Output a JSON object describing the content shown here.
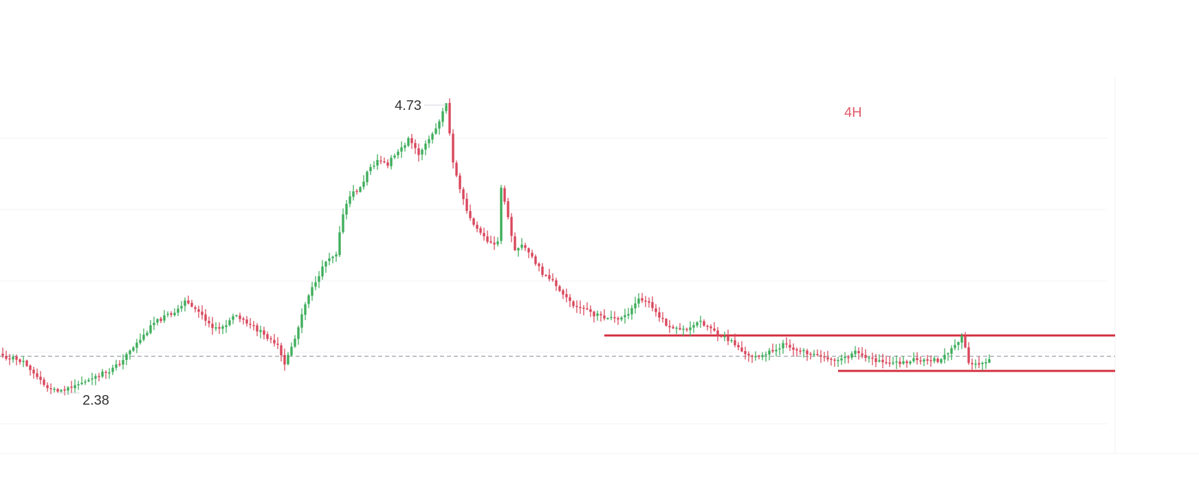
{
  "chart_data": {
    "type": "candlestick",
    "timeframe_label": "4H",
    "annotations": {
      "high_label": "4.73",
      "low_label": "2.38"
    },
    "levels": {
      "current_price": 2.68,
      "resistance": 2.85,
      "support": 2.56
    },
    "ylim": [
      2.2,
      5.0
    ],
    "colors": {
      "up": "#3fae5c",
      "down": "#d9475c",
      "level": "#d32f3f",
      "tf": "#e05a6a",
      "grid": "#f1f2f4",
      "dash": "#9aa0a6"
    },
    "segments": [
      [
        [
          0,
          2.68
        ],
        [
          3,
          2.66
        ],
        [
          6,
          2.64
        ],
        [
          10,
          2.5
        ],
        [
          13,
          2.42
        ],
        [
          16,
          2.38
        ],
        [
          19,
          2.42
        ],
        [
          23,
          2.46
        ],
        [
          27,
          2.52
        ],
        [
          31,
          2.56
        ],
        [
          34,
          2.62
        ],
        [
          37,
          2.72
        ],
        [
          41,
          2.85
        ],
        [
          44,
          2.95
        ],
        [
          47,
          3.0
        ],
        [
          50,
          3.05
        ],
        [
          53,
          3.12
        ],
        [
          56,
          3.08
        ],
        [
          59,
          2.98
        ],
        [
          62,
          2.9
        ],
        [
          65,
          2.95
        ],
        [
          68,
          3.02
        ],
        [
          71,
          2.96
        ],
        [
          74,
          2.9
        ],
        [
          77,
          2.84
        ],
        [
          80,
          2.78
        ],
        [
          82,
          2.62
        ],
        [
          85,
          2.82
        ],
        [
          88,
          3.1
        ],
        [
          91,
          3.3
        ],
        [
          94,
          3.45
        ],
        [
          97,
          3.5
        ]
      ],
      [
        [
          97,
          3.5
        ],
        [
          99,
          3.85
        ],
        [
          101,
          4.0
        ],
        [
          104,
          4.05
        ],
        [
          106,
          4.18
        ],
        [
          109,
          4.28
        ],
        [
          112,
          4.25
        ],
        [
          115,
          4.35
        ],
        [
          118,
          4.45
        ],
        [
          121,
          4.32
        ],
        [
          124,
          4.45
        ],
        [
          127,
          4.6
        ],
        [
          129,
          4.73
        ],
        [
          131,
          4.25
        ],
        [
          133,
          4.05
        ],
        [
          135,
          3.85
        ],
        [
          137,
          3.75
        ]
      ],
      [
        [
          137,
          3.75
        ],
        [
          140,
          3.65
        ],
        [
          142,
          3.6
        ],
        [
          144,
          3.62
        ],
        [
          145,
          4.05
        ],
        [
          147,
          3.8
        ],
        [
          149,
          3.55
        ],
        [
          151,
          3.58
        ],
        [
          154,
          3.5
        ],
        [
          157,
          3.35
        ],
        [
          160,
          3.3
        ],
        [
          163,
          3.18
        ],
        [
          166,
          3.1
        ],
        [
          169,
          3.08
        ],
        [
          172,
          3.02
        ],
        [
          175,
          3.0
        ],
        [
          178,
          2.98
        ],
        [
          181,
          3.0
        ],
        [
          183,
          3.08
        ],
        [
          185,
          3.15
        ],
        [
          188,
          3.12
        ],
        [
          191,
          3.0
        ]
      ],
      [
        [
          191,
          3.0
        ],
        [
          194,
          2.92
        ],
        [
          197,
          2.9
        ],
        [
          200,
          2.92
        ],
        [
          203,
          2.95
        ],
        [
          206,
          2.9
        ],
        [
          209,
          2.85
        ],
        [
          212,
          2.8
        ],
        [
          215,
          2.72
        ],
        [
          218,
          2.68
        ],
        [
          221,
          2.7
        ],
        [
          224,
          2.72
        ],
        [
          227,
          2.78
        ],
        [
          230,
          2.75
        ],
        [
          233,
          2.72
        ],
        [
          236,
          2.7
        ],
        [
          239,
          2.68
        ],
        [
          242,
          2.65
        ],
        [
          245,
          2.66
        ],
        [
          248,
          2.72
        ],
        [
          251,
          2.68
        ],
        [
          254,
          2.65
        ],
        [
          257,
          2.64
        ],
        [
          260,
          2.62
        ],
        [
          263,
          2.64
        ],
        [
          266,
          2.66
        ],
        [
          269,
          2.64
        ],
        [
          272,
          2.65
        ],
        [
          275,
          2.72
        ],
        [
          278,
          2.8
        ],
        [
          279,
          2.85
        ],
        [
          281,
          2.62
        ],
        [
          284,
          2.6
        ],
        [
          287,
          2.64
        ]
      ]
    ]
  }
}
